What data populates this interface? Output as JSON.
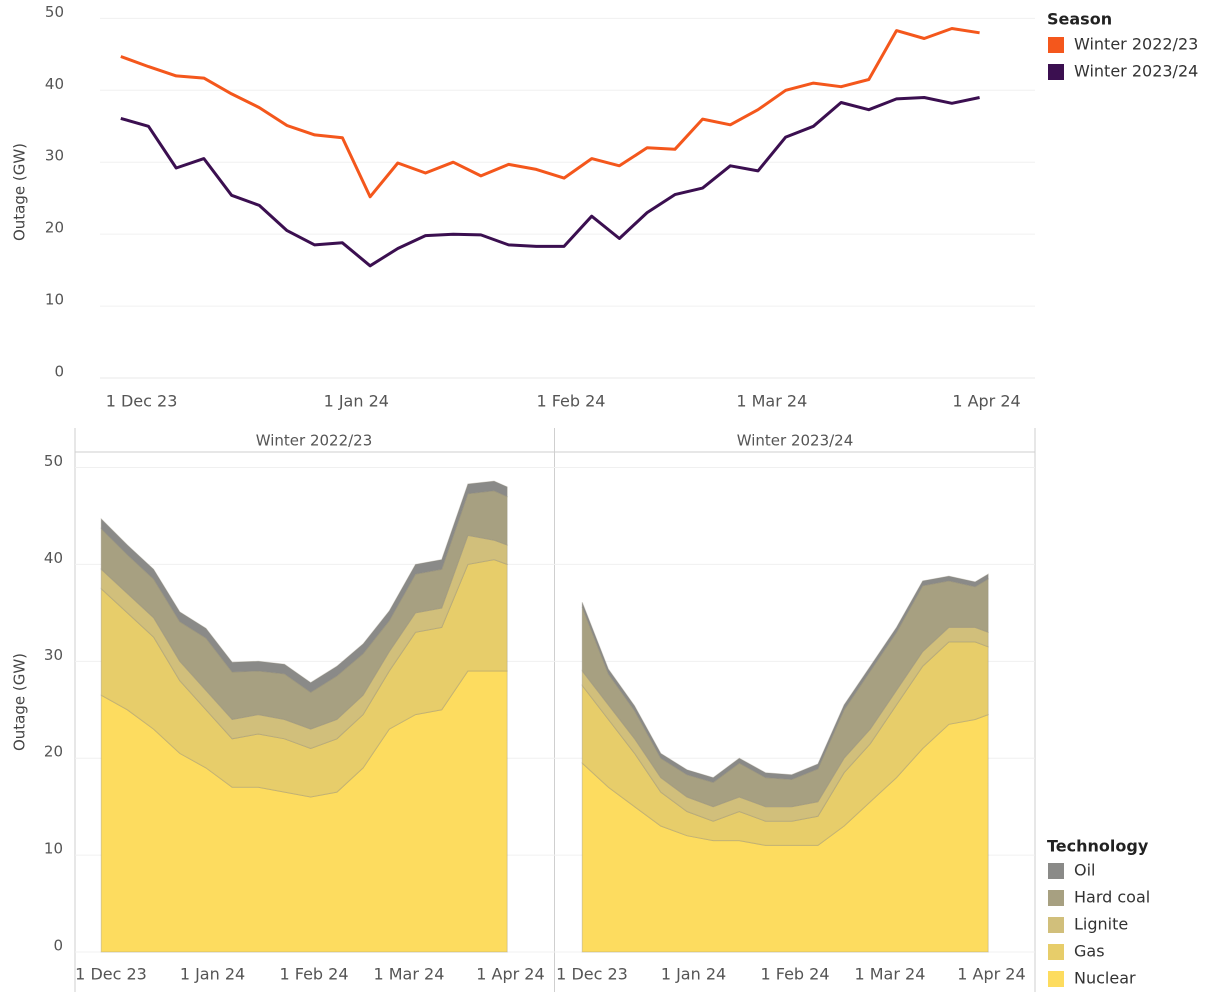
{
  "chart_data": [
    {
      "type": "line",
      "y_label": "Outage (GW)",
      "legend_title": "Season",
      "x": [
        "2023-11-28",
        "2023-12-02",
        "2023-12-06",
        "2023-12-10",
        "2023-12-14",
        "2023-12-18",
        "2023-12-22",
        "2023-12-26",
        "2023-12-30",
        "2024-01-03",
        "2024-01-07",
        "2024-01-11",
        "2024-01-15",
        "2024-01-19",
        "2024-01-23",
        "2024-01-27",
        "2024-01-31",
        "2024-02-04",
        "2024-02-08",
        "2024-02-12",
        "2024-02-16",
        "2024-02-20",
        "2024-02-24",
        "2024-02-28",
        "2024-03-03",
        "2024-03-07",
        "2024-03-11",
        "2024-03-15",
        "2024-03-19",
        "2024-03-23",
        "2024-03-27",
        "2024-03-31"
      ],
      "series": [
        {
          "name": "Winter 2022/23",
          "color": "#f4571c",
          "values": [
            44.7,
            43.3,
            42.0,
            41.7,
            39.5,
            37.6,
            35.1,
            33.8,
            33.4,
            25.2,
            29.9,
            28.5,
            30.0,
            28.1,
            29.7,
            29.0,
            27.8,
            30.5,
            29.5,
            32.0,
            31.8,
            36.0,
            35.2,
            37.3,
            40.0,
            41.0,
            40.5,
            41.5,
            48.3,
            47.2,
            48.6,
            48.0
          ]
        },
        {
          "name": "Winter 2023/24",
          "color": "#3b0f50",
          "values": [
            36.1,
            35.0,
            29.2,
            30.5,
            25.4,
            24.0,
            20.5,
            18.5,
            18.8,
            15.6,
            18.0,
            19.8,
            20.0,
            19.9,
            18.5,
            18.3,
            18.3,
            22.5,
            19.4,
            23.0,
            25.5,
            26.4,
            29.5,
            28.8,
            33.5,
            35.0,
            38.3,
            37.3,
            38.8,
            39.0,
            38.2,
            39.0
          ]
        }
      ],
      "xlim": [
        "2023-11-25",
        "2024-04-08"
      ],
      "xticks": [
        {
          "value": "2023-12-01",
          "label": "1 Dec 23"
        },
        {
          "value": "2024-01-01",
          "label": "1 Jan 24"
        },
        {
          "value": "2024-02-01",
          "label": "1 Feb 24"
        },
        {
          "value": "2024-03-01",
          "label": "1 Mar 24"
        },
        {
          "value": "2024-04-01",
          "label": "1 Apr 24"
        }
      ],
      "ylim": [
        0,
        52
      ],
      "yticks": [
        0,
        10,
        20,
        30,
        40,
        50
      ],
      "grid": true
    },
    {
      "type": "area",
      "y_label": "Outage (GW)",
      "legend_title": "Technology",
      "panels": [
        "Winter 2022/23",
        "Winter 2023/24"
      ],
      "x": [
        "2023-11-28",
        "2023-12-06",
        "2023-12-14",
        "2023-12-22",
        "2023-12-30",
        "2024-01-07",
        "2024-01-15",
        "2024-01-23",
        "2024-01-31",
        "2024-02-08",
        "2024-02-16",
        "2024-02-24",
        "2024-03-03",
        "2024-03-11",
        "2024-03-19",
        "2024-03-27",
        "2024-03-31"
      ],
      "series": [
        {
          "name": "Nuclear",
          "color": "#fddc5f",
          "values": [
            [
              26.5,
              25,
              23,
              20.5,
              19,
              17,
              17,
              16.5,
              16,
              16.5,
              19,
              23,
              24.5,
              25,
              29,
              29,
              29
            ],
            [
              19.5,
              17,
              15,
              13,
              12,
              11.5,
              11.5,
              11,
              11,
              11,
              13,
              15.5,
              18,
              21,
              23.5,
              24,
              24.5
            ]
          ]
        },
        {
          "name": "Gas",
          "color": "#e7cd6a",
          "values": [
            [
              11,
              10,
              9.5,
              7.5,
              6,
              5,
              5.5,
              5.5,
              5,
              5.5,
              5.5,
              6,
              8.5,
              8.5,
              11,
              11.5,
              11
            ],
            [
              8,
              7,
              5.5,
              3.5,
              2.5,
              2,
              3,
              2.5,
              2.5,
              3,
              5.5,
              6,
              7.5,
              8.5,
              8.5,
              8,
              7
            ]
          ]
        },
        {
          "name": "Lignite",
          "color": "#d1bf7b",
          "values": [
            [
              2,
              2,
              2,
              2,
              2,
              2,
              2,
              2,
              2,
              2,
              2,
              2,
              2,
              2,
              3,
              2,
              2
            ],
            [
              1.5,
              1.5,
              1.5,
              1.5,
              1.5,
              1.5,
              1.5,
              1.5,
              1.5,
              1.5,
              1.5,
              1.5,
              1.5,
              1.5,
              1.5,
              1.5,
              1.5
            ]
          ]
        },
        {
          "name": "Hard coal",
          "color": "#a7a081",
          "values": [
            [
              4.2,
              4,
              4,
              4.1,
              5.4,
              4.9,
              4.5,
              4.7,
              3.8,
              4.5,
              4.3,
              3.2,
              4,
              4,
              4.3,
              5.1,
              5
            ],
            [
              6.6,
              3.2,
              2.9,
              2,
              2.3,
              2.5,
              3.5,
              3,
              2.8,
              3.4,
              5,
              6,
              6,
              6.8,
              4.8,
              4.2,
              5.5
            ]
          ]
        },
        {
          "name": "Oil",
          "color": "#8a8a88",
          "values": [
            [
              1,
              1,
              1,
              1,
              1,
              1,
              1,
              1,
              1,
              1,
              1,
              1,
              1,
              1,
              1,
              1,
              1
            ],
            [
              0.5,
              0.5,
              0.5,
              0.5,
              0.5,
              0.5,
              0.5,
              0.5,
              0.5,
              0.5,
              0.5,
              0.5,
              0.5,
              0.5,
              0.5,
              0.5,
              0.5
            ]
          ]
        }
      ],
      "xlim": [
        "2023-11-20",
        "2024-04-14"
      ],
      "xticks": [
        {
          "value": "2023-12-01",
          "label": "1 Dec 23"
        },
        {
          "value": "2024-01-01",
          "label": "1 Jan 24"
        },
        {
          "value": "2024-02-01",
          "label": "1 Feb 24"
        },
        {
          "value": "2024-03-01",
          "label": "1 Mar 24"
        },
        {
          "value": "2024-04-01",
          "label": "1 Apr 24"
        }
      ],
      "ylim": [
        0,
        51.5
      ],
      "yticks": [
        0,
        10,
        20,
        30,
        40,
        50
      ],
      "grid": true
    }
  ]
}
